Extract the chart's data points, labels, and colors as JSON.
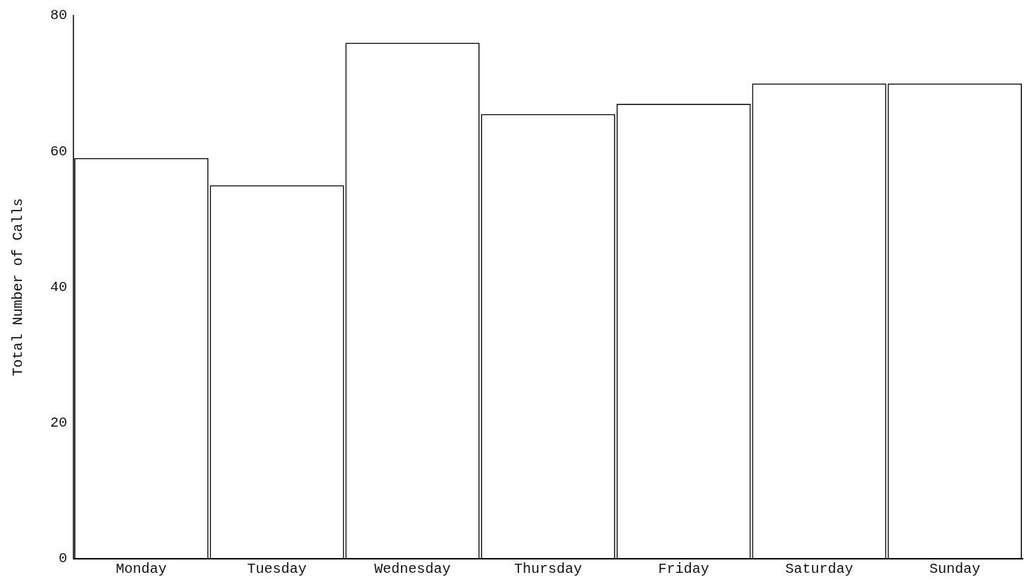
{
  "chart_data": {
    "type": "bar",
    "ylabel": "Total Number of Calls",
    "categories": [
      "Monday",
      "Tuesday",
      "Wednesday",
      "Thursday",
      "Friday",
      "Saturday",
      "Sunday"
    ],
    "values": [
      59,
      55,
      76,
      65.5,
      67,
      70,
      70
    ],
    "color": "#000000",
    "ylim": [
      0,
      80
    ],
    "yticks": [
      0,
      20,
      40,
      60,
      80
    ],
    "grid": false,
    "legend": false
  }
}
